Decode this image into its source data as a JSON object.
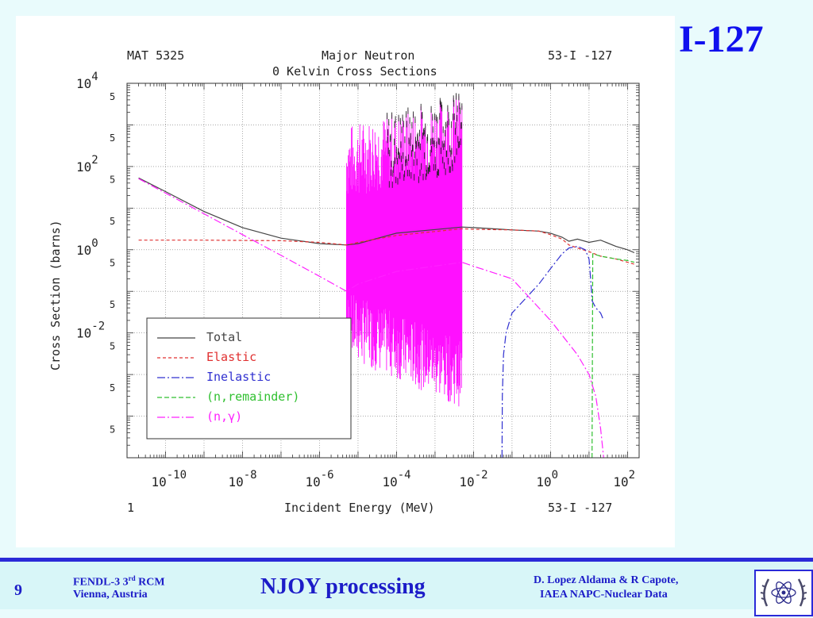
{
  "slide_title": "I-127",
  "footer": {
    "page_number": "9",
    "meeting_line1": "FENDL-3 3",
    "meeting_line1_sup": "rd",
    "meeting_line1_rest": " RCM",
    "meeting_line2": "Vienna, Austria",
    "title": "NJOY processing",
    "authors_line1": "D. Lopez Aldama & R Capote,",
    "authors_line2": "IAEA  NAPC-Nuclear Data",
    "logo_icon": "iaea-atom-wreath-icon"
  },
  "plot_header": {
    "mat": "MAT 5325",
    "title_line1": "Major Neutron",
    "title_line2": "0 Kelvin Cross Sections",
    "isotope": "53-I -127"
  },
  "plot_footer": {
    "left": "1",
    "xlabel": "Incident Energy (MeV)",
    "isotope": "53-I -127"
  },
  "chart_data": {
    "type": "line",
    "title": "Major Neutron 0 Kelvin Cross Sections",
    "xlabel": "Incident Energy (MeV)",
    "ylabel": "Cross Section (barns)",
    "xscale": "log",
    "yscale": "log",
    "xlim": [
      1e-11,
      200
    ],
    "ylim": [
      1e-05,
      10000
    ],
    "grid": true,
    "legend_position": "bottom-left",
    "x_ticks": [
      {
        "base": "10",
        "exp": "-10",
        "value": 1e-10
      },
      {
        "base": "10",
        "exp": "-8",
        "value": 1e-08
      },
      {
        "base": "10",
        "exp": "-6",
        "value": 1e-06
      },
      {
        "base": "10",
        "exp": "-4",
        "value": 0.0001
      },
      {
        "base": "10",
        "exp": "-2",
        "value": 0.01
      },
      {
        "base": "10",
        "exp": "0",
        "value": 1
      },
      {
        "base": "10",
        "exp": "2",
        "value": 100
      }
    ],
    "y_ticks": [
      {
        "base": "10",
        "exp": "4",
        "value": 10000
      },
      {
        "base": "10",
        "exp": "2",
        "value": 100
      },
      {
        "base": "10",
        "exp": "0",
        "value": 1
      },
      {
        "base": "10",
        "exp": "-2",
        "value": 0.01
      }
    ],
    "y_minor_labels": [
      {
        "label": "5",
        "value": 5000
      },
      {
        "label": "5",
        "value": 500
      },
      {
        "label": "5",
        "value": 50
      },
      {
        "label": "5",
        "value": 5
      },
      {
        "label": "5",
        "value": 0.5
      },
      {
        "label": "5",
        "value": 0.05
      },
      {
        "label": "5",
        "value": 0.005
      },
      {
        "label": "5",
        "value": 0.0005
      },
      {
        "label": "5",
        "value": 5e-05
      }
    ],
    "resonance_region": {
      "x_start": 5e-06,
      "x_end": 0.005
    },
    "series": [
      {
        "name": "Total",
        "color": "#444444",
        "dash": "",
        "points": [
          [
            2e-11,
            53
          ],
          [
            1e-10,
            25
          ],
          [
            1e-09,
            8.3
          ],
          [
            1e-08,
            3.4
          ],
          [
            1e-07,
            1.9
          ],
          [
            1e-06,
            1.4
          ],
          [
            5e-06,
            1.3
          ],
          [
            1e-05,
            1.4
          ],
          [
            0.0001,
            2.5
          ],
          [
            0.005,
            3.5
          ],
          [
            0.01,
            3.4
          ],
          [
            0.1,
            3.0
          ],
          [
            0.5,
            2.8
          ],
          [
            1,
            2.5
          ],
          [
            2,
            2.0
          ],
          [
            3,
            1.6
          ],
          [
            5,
            1.8
          ],
          [
            10,
            1.5
          ],
          [
            20,
            1.7
          ],
          [
            50,
            1.2
          ],
          [
            100,
            1.0
          ],
          [
            150,
            0.85
          ]
        ]
      },
      {
        "name": "Elastic",
        "color": "#e03030",
        "dash": "4,3",
        "points": [
          [
            2e-11,
            1.7
          ],
          [
            1e-09,
            1.7
          ],
          [
            1e-07,
            1.65
          ],
          [
            1e-06,
            1.5
          ],
          [
            5e-06,
            1.3
          ],
          [
            1e-05,
            1.5
          ],
          [
            0.0001,
            2.2
          ],
          [
            0.005,
            3.2
          ],
          [
            0.01,
            3.1
          ],
          [
            0.1,
            3.0
          ],
          [
            0.5,
            2.8
          ],
          [
            1,
            2.3
          ],
          [
            2,
            1.8
          ],
          [
            3,
            1.3
          ],
          [
            5,
            1.1
          ],
          [
            10,
            0.9
          ],
          [
            20,
            0.7
          ],
          [
            50,
            0.6
          ],
          [
            100,
            0.5
          ],
          [
            150,
            0.45
          ]
        ]
      },
      {
        "name": "Inelastic",
        "color": "#3030d0",
        "dash": "10,3,2,3",
        "points": [
          [
            0.055,
            1e-05
          ],
          [
            0.056,
            0.0003
          ],
          [
            0.06,
            0.003
          ],
          [
            0.07,
            0.01
          ],
          [
            0.1,
            0.03
          ],
          [
            0.2,
            0.06
          ],
          [
            0.5,
            0.15
          ],
          [
            1,
            0.35
          ],
          [
            2,
            0.8
          ],
          [
            3,
            1.1
          ],
          [
            5,
            1.2
          ],
          [
            8,
            1.0
          ],
          [
            10,
            0.6
          ],
          [
            11,
            0.2
          ],
          [
            12,
            0.06
          ],
          [
            15,
            0.04
          ],
          [
            20,
            0.03
          ],
          [
            24,
            0.02
          ]
        ]
      },
      {
        "name": "(n,remainder)",
        "color": "#30c030",
        "dash": "6,3",
        "points": [
          [
            12,
            1e-05
          ],
          [
            12.5,
            0.8
          ],
          [
            20,
            0.7
          ],
          [
            50,
            0.6
          ],
          [
            100,
            0.55
          ],
          [
            150,
            0.5
          ]
        ]
      },
      {
        "name": "(n,γ)",
        "color": "#ff20ff",
        "dash": "10,3,2,3",
        "points": [
          [
            2e-11,
            51
          ],
          [
            1e-10,
            23
          ],
          [
            1e-09,
            7.3
          ],
          [
            1e-08,
            2.3
          ],
          [
            1e-07,
            0.73
          ],
          [
            1e-06,
            0.23
          ],
          [
            5e-06,
            0.1
          ],
          [
            1e-05,
            0.15
          ],
          [
            0.0001,
            0.3
          ],
          [
            0.005,
            0.5
          ],
          [
            0.01,
            0.4
          ],
          [
            0.1,
            0.2
          ],
          [
            1,
            0.02
          ],
          [
            5,
            0.003
          ],
          [
            10,
            0.001
          ],
          [
            15,
            0.0003
          ],
          [
            20,
            5e-05
          ],
          [
            24,
            1e-05
          ]
        ]
      }
    ]
  }
}
